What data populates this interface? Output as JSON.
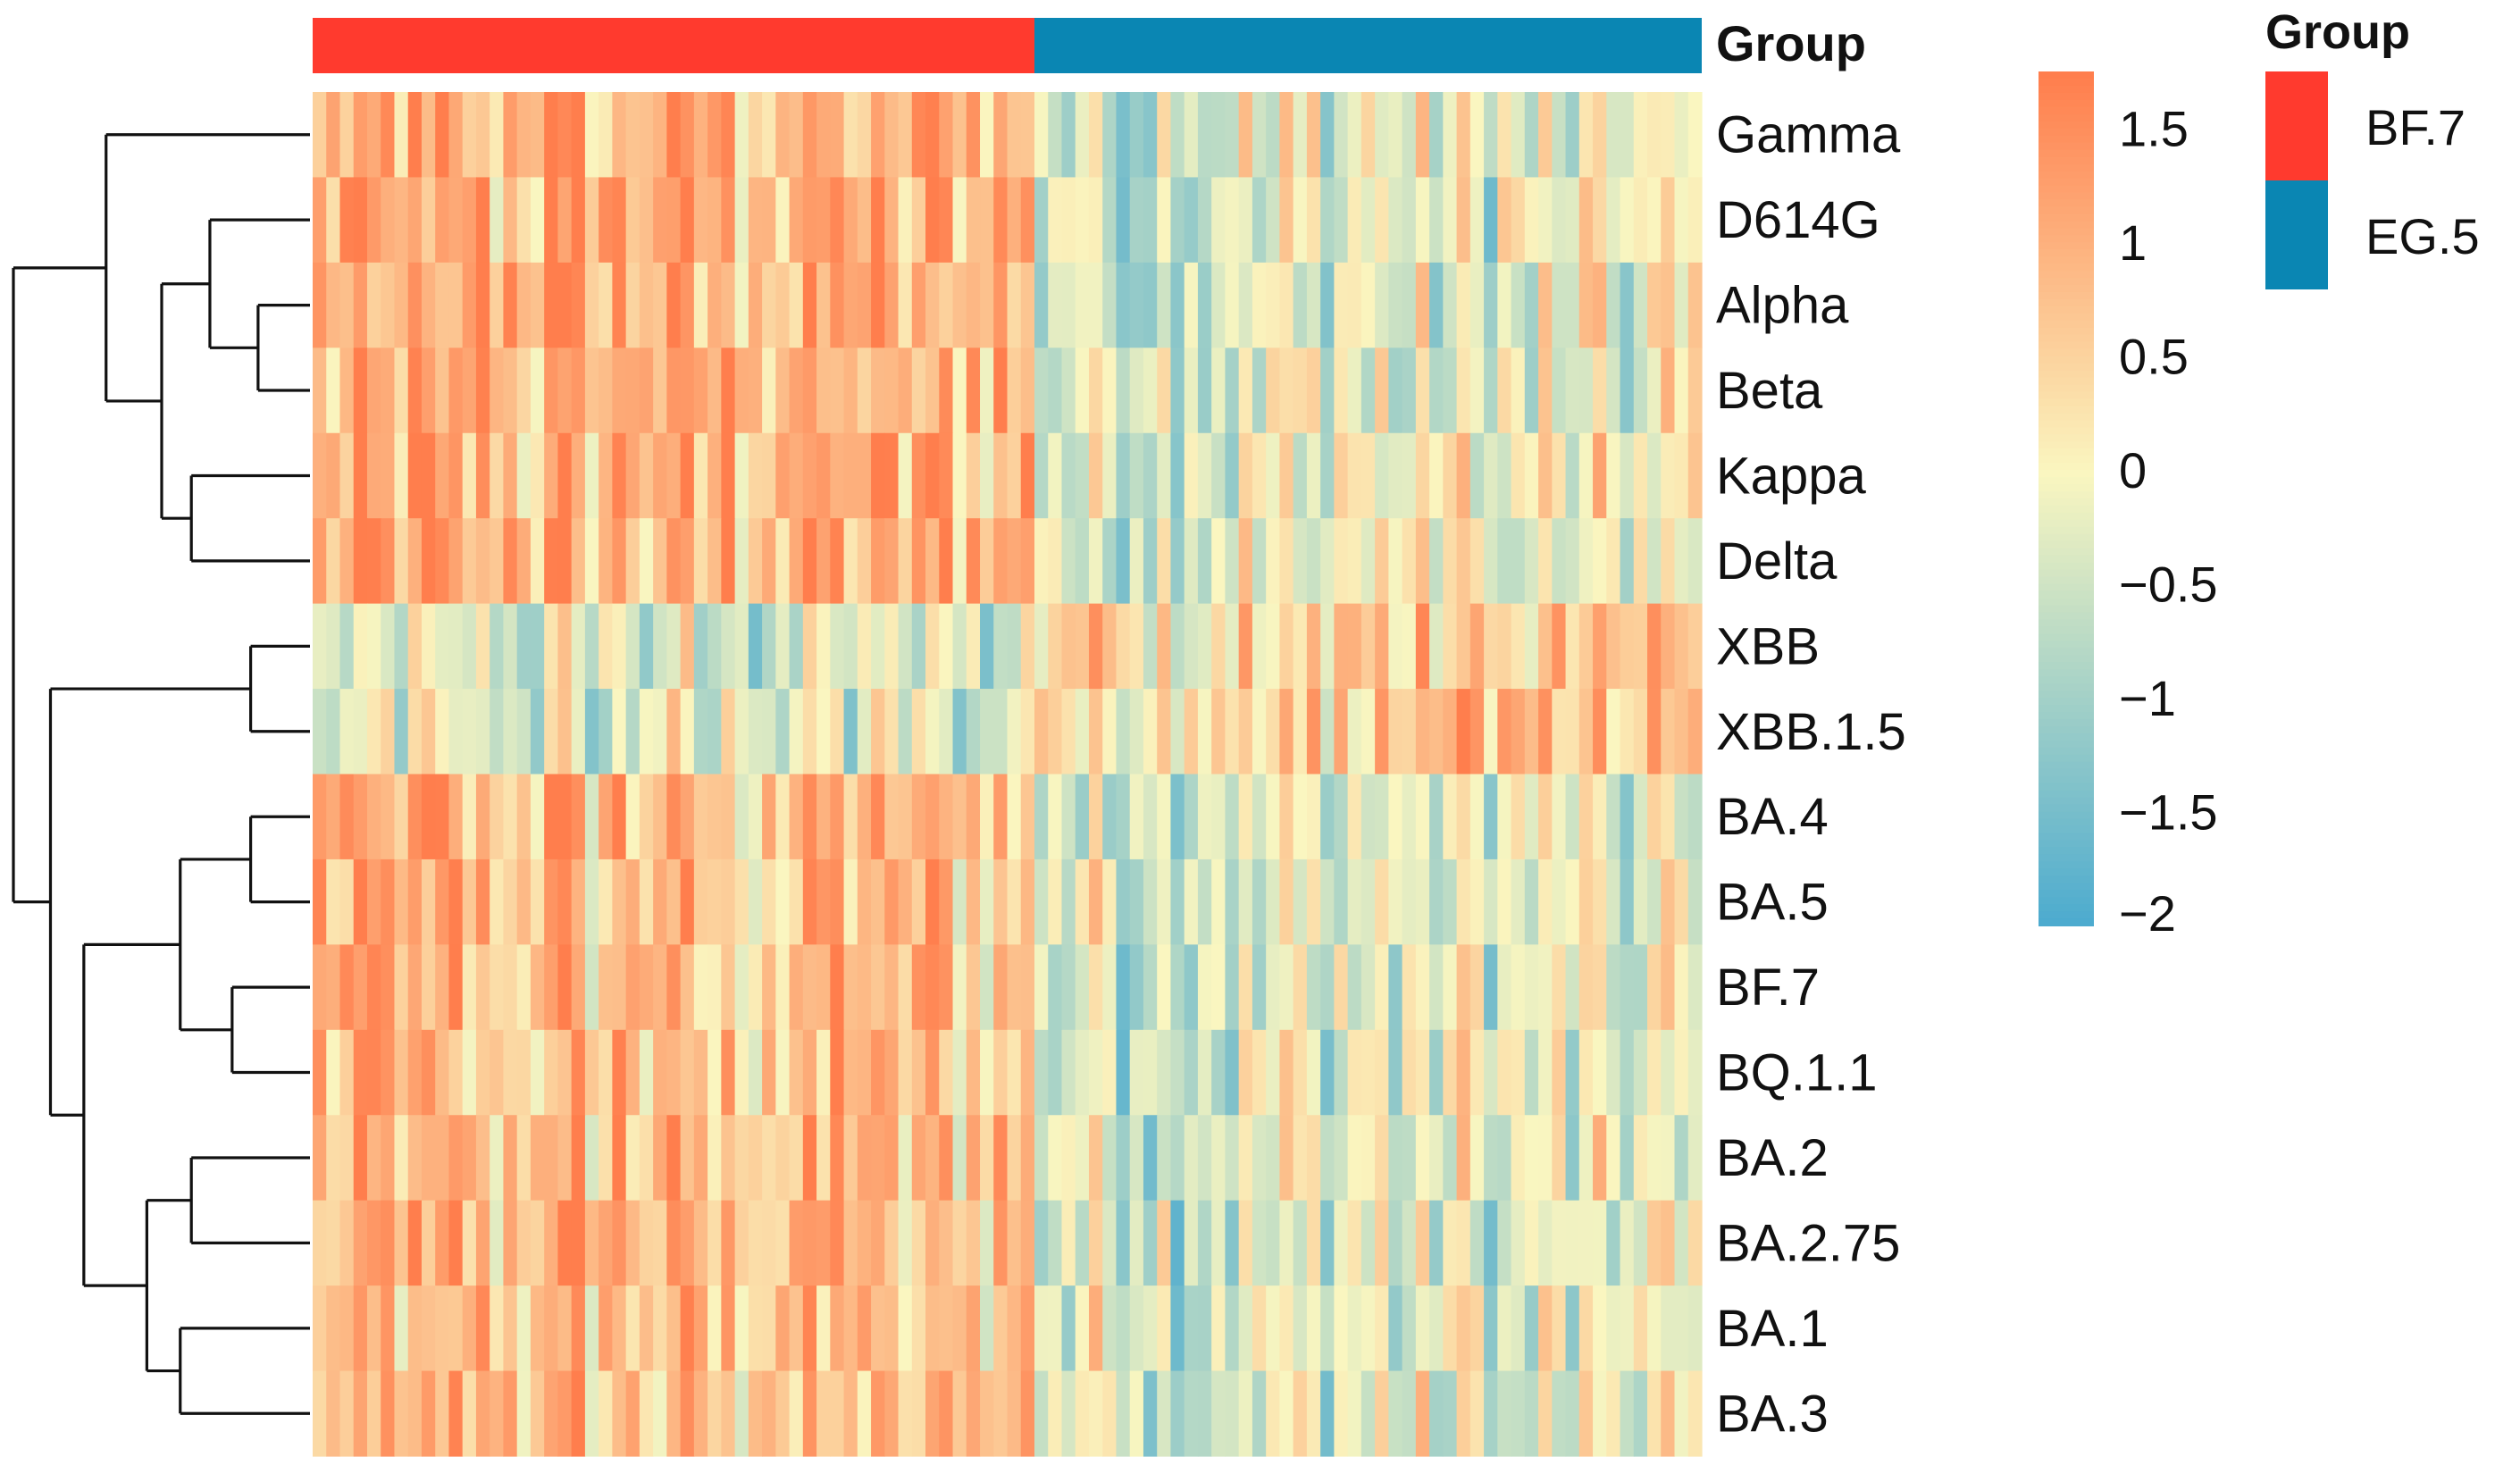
{
  "chart_data": {
    "type": "heatmap",
    "title": "",
    "rows": [
      "Gamma",
      "D614G",
      "Alpha",
      "Beta",
      "Kappa",
      "Delta",
      "XBB",
      "XBB.1.5",
      "BA.4",
      "BA.5",
      "BF.7",
      "BQ.1.1",
      "BA.2",
      "BA.2.75",
      "BA.1",
      "BA.3"
    ],
    "column_annotation": {
      "title": "Group",
      "groups": [
        {
          "name": "BF.7",
          "count": 53,
          "color": "#FF3A2E"
        },
        {
          "name": "EG.5",
          "count": 49,
          "color": "#0A86B3"
        }
      ]
    },
    "legend": {
      "title": "Group",
      "entries": [
        {
          "label": "BF.7",
          "color": "#FF3A2E"
        },
        {
          "label": "EG.5",
          "color": "#0A86B3"
        }
      ]
    },
    "colorbar": {
      "range": [
        -2,
        1.75
      ],
      "ticks": [
        1.5,
        1,
        0.5,
        0,
        -0.5,
        -1,
        -1.5,
        -2
      ],
      "tick_labels": [
        "1.5",
        "1",
        "0.5",
        "0",
        "−0.5",
        "−1",
        "−1.5",
        "−2"
      ],
      "low_color": "#4AAACF",
      "mid_color": "#FAF6C0",
      "high_color": "#FF7E4D"
    },
    "row_dendrogram": {
      "merges": [
        {
          "left": "XBB",
          "right": "XBB.1.5",
          "height": 1.6
        },
        {
          "left": "BA.4",
          "right": "BA.5",
          "height": 1.6
        },
        {
          "left": "BF.7",
          "right": "BQ.1.1",
          "height": 2.1
        },
        {
          "left": "Alpha",
          "right": "Beta",
          "height": 1.4
        },
        {
          "left": "Kappa",
          "right": "Delta",
          "height": 3.2
        },
        {
          "left": "BA.2",
          "right": "BA.2.75",
          "height": 3.2
        },
        {
          "left": "BA.1",
          "right": "BA.3",
          "height": 3.5
        },
        {
          "left": "D614G",
          "right": "Alpha+Beta",
          "height": 2.7
        },
        {
          "left": "BA.4+BA.5",
          "right": "BF.7+BQ.1.1",
          "height": 3.5
        },
        {
          "left": "D614G+Alpha+Beta",
          "right": "Kappa+Delta",
          "height": 4.0
        },
        {
          "left": "BA.2+BA.2.75",
          "right": "BA.1+BA.3",
          "height": 4.4
        },
        {
          "left": "Gamma",
          "right": "D614G..Delta",
          "height": 5.5
        },
        {
          "left": "BA.4..BQ.1.1",
          "right": "BA.2..BA.3",
          "height": 6.1
        },
        {
          "left": "XBB+XBB.1.5",
          "right": "BA.4..BA.3",
          "height": 7.0
        },
        {
          "left": "Gamma..Delta",
          "right": "XBB..BA.3",
          "height": 8.0
        }
      ]
    }
  }
}
